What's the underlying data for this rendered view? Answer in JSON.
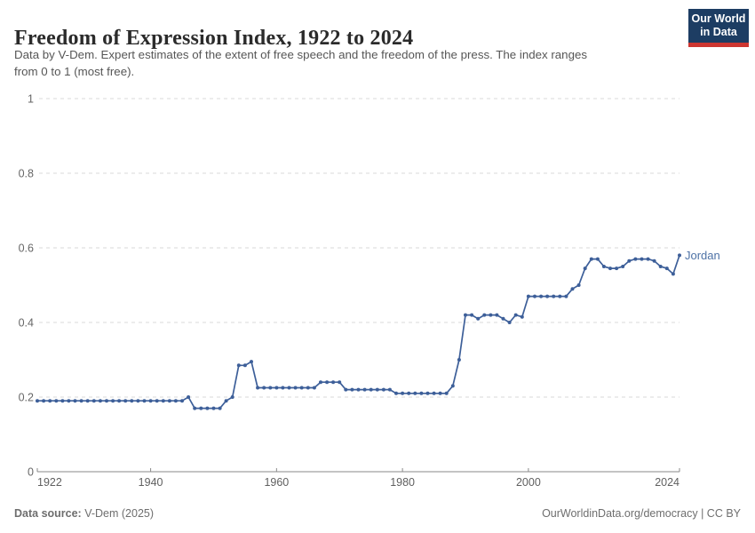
{
  "header": {
    "title": "Freedom of Expression Index, 1922 to 2024",
    "subtitle_lines": [
      "Data by V-Dem. Expert estimates of the extent of free speech and the freedom of the press. The index ranges",
      "from 0 to 1 (most free)."
    ],
    "logo": {
      "line1": "Our World",
      "line2": "in Data",
      "bg_color": "#1d3d63",
      "accent_color": "#cd3631"
    }
  },
  "chart_data": {
    "type": "line",
    "title": "Freedom of Expression Index, 1922 to 2024",
    "xlabel": "",
    "ylabel": "",
    "xlim": [
      1922,
      2024
    ],
    "ylim": [
      0,
      1
    ],
    "x_ticks": [
      1922,
      1940,
      1960,
      1980,
      2000,
      2024
    ],
    "y_ticks": [
      0,
      0.2,
      0.4,
      0.6,
      0.8,
      1
    ],
    "grid": "horizontal-dashed",
    "legend_position": "end-of-line-label",
    "series": [
      {
        "name": "Jordan",
        "color": "#3d5f99",
        "label_color": "#4e72a6",
        "points": [
          [
            1922,
            0.19
          ],
          [
            1923,
            0.19
          ],
          [
            1924,
            0.19
          ],
          [
            1925,
            0.19
          ],
          [
            1926,
            0.19
          ],
          [
            1927,
            0.19
          ],
          [
            1928,
            0.19
          ],
          [
            1929,
            0.19
          ],
          [
            1930,
            0.19
          ],
          [
            1931,
            0.19
          ],
          [
            1932,
            0.19
          ],
          [
            1933,
            0.19
          ],
          [
            1934,
            0.19
          ],
          [
            1935,
            0.19
          ],
          [
            1936,
            0.19
          ],
          [
            1937,
            0.19
          ],
          [
            1938,
            0.19
          ],
          [
            1939,
            0.19
          ],
          [
            1940,
            0.19
          ],
          [
            1941,
            0.19
          ],
          [
            1942,
            0.19
          ],
          [
            1943,
            0.19
          ],
          [
            1944,
            0.19
          ],
          [
            1945,
            0.19
          ],
          [
            1946,
            0.2
          ],
          [
            1947,
            0.17
          ],
          [
            1948,
            0.17
          ],
          [
            1949,
            0.17
          ],
          [
            1950,
            0.17
          ],
          [
            1951,
            0.17
          ],
          [
            1952,
            0.19
          ],
          [
            1953,
            0.2
          ],
          [
            1954,
            0.285
          ],
          [
            1955,
            0.285
          ],
          [
            1956,
            0.295
          ],
          [
            1957,
            0.225
          ],
          [
            1958,
            0.225
          ],
          [
            1959,
            0.225
          ],
          [
            1960,
            0.225
          ],
          [
            1961,
            0.225
          ],
          [
            1962,
            0.225
          ],
          [
            1963,
            0.225
          ],
          [
            1964,
            0.225
          ],
          [
            1965,
            0.225
          ],
          [
            1966,
            0.225
          ],
          [
            1967,
            0.24
          ],
          [
            1968,
            0.24
          ],
          [
            1969,
            0.24
          ],
          [
            1970,
            0.24
          ],
          [
            1971,
            0.22
          ],
          [
            1972,
            0.22
          ],
          [
            1973,
            0.22
          ],
          [
            1974,
            0.22
          ],
          [
            1975,
            0.22
          ],
          [
            1976,
            0.22
          ],
          [
            1977,
            0.22
          ],
          [
            1978,
            0.22
          ],
          [
            1979,
            0.21
          ],
          [
            1980,
            0.21
          ],
          [
            1981,
            0.21
          ],
          [
            1982,
            0.21
          ],
          [
            1983,
            0.21
          ],
          [
            1984,
            0.21
          ],
          [
            1985,
            0.21
          ],
          [
            1986,
            0.21
          ],
          [
            1987,
            0.21
          ],
          [
            1988,
            0.23
          ],
          [
            1989,
            0.3
          ],
          [
            1990,
            0.42
          ],
          [
            1991,
            0.42
          ],
          [
            1992,
            0.41
          ],
          [
            1993,
            0.42
          ],
          [
            1994,
            0.42
          ],
          [
            1995,
            0.42
          ],
          [
            1996,
            0.41
          ],
          [
            1997,
            0.4
          ],
          [
            1998,
            0.42
          ],
          [
            1999,
            0.415
          ],
          [
            2000,
            0.47
          ],
          [
            2001,
            0.47
          ],
          [
            2002,
            0.47
          ],
          [
            2003,
            0.47
          ],
          [
            2004,
            0.47
          ],
          [
            2005,
            0.47
          ],
          [
            2006,
            0.47
          ],
          [
            2007,
            0.49
          ],
          [
            2008,
            0.5
          ],
          [
            2009,
            0.545
          ],
          [
            2010,
            0.57
          ],
          [
            2011,
            0.57
          ],
          [
            2012,
            0.55
          ],
          [
            2013,
            0.545
          ],
          [
            2014,
            0.545
          ],
          [
            2015,
            0.55
          ],
          [
            2016,
            0.565
          ],
          [
            2017,
            0.57
          ],
          [
            2018,
            0.57
          ],
          [
            2019,
            0.57
          ],
          [
            2020,
            0.565
          ],
          [
            2021,
            0.55
          ],
          [
            2022,
            0.545
          ],
          [
            2023,
            0.53
          ],
          [
            2024,
            0.58
          ]
        ]
      }
    ]
  },
  "footer": {
    "source_label": "Data source:",
    "source_value": " V-Dem (2025)",
    "credit": "OurWorldinData.org/democracy | CC BY"
  }
}
